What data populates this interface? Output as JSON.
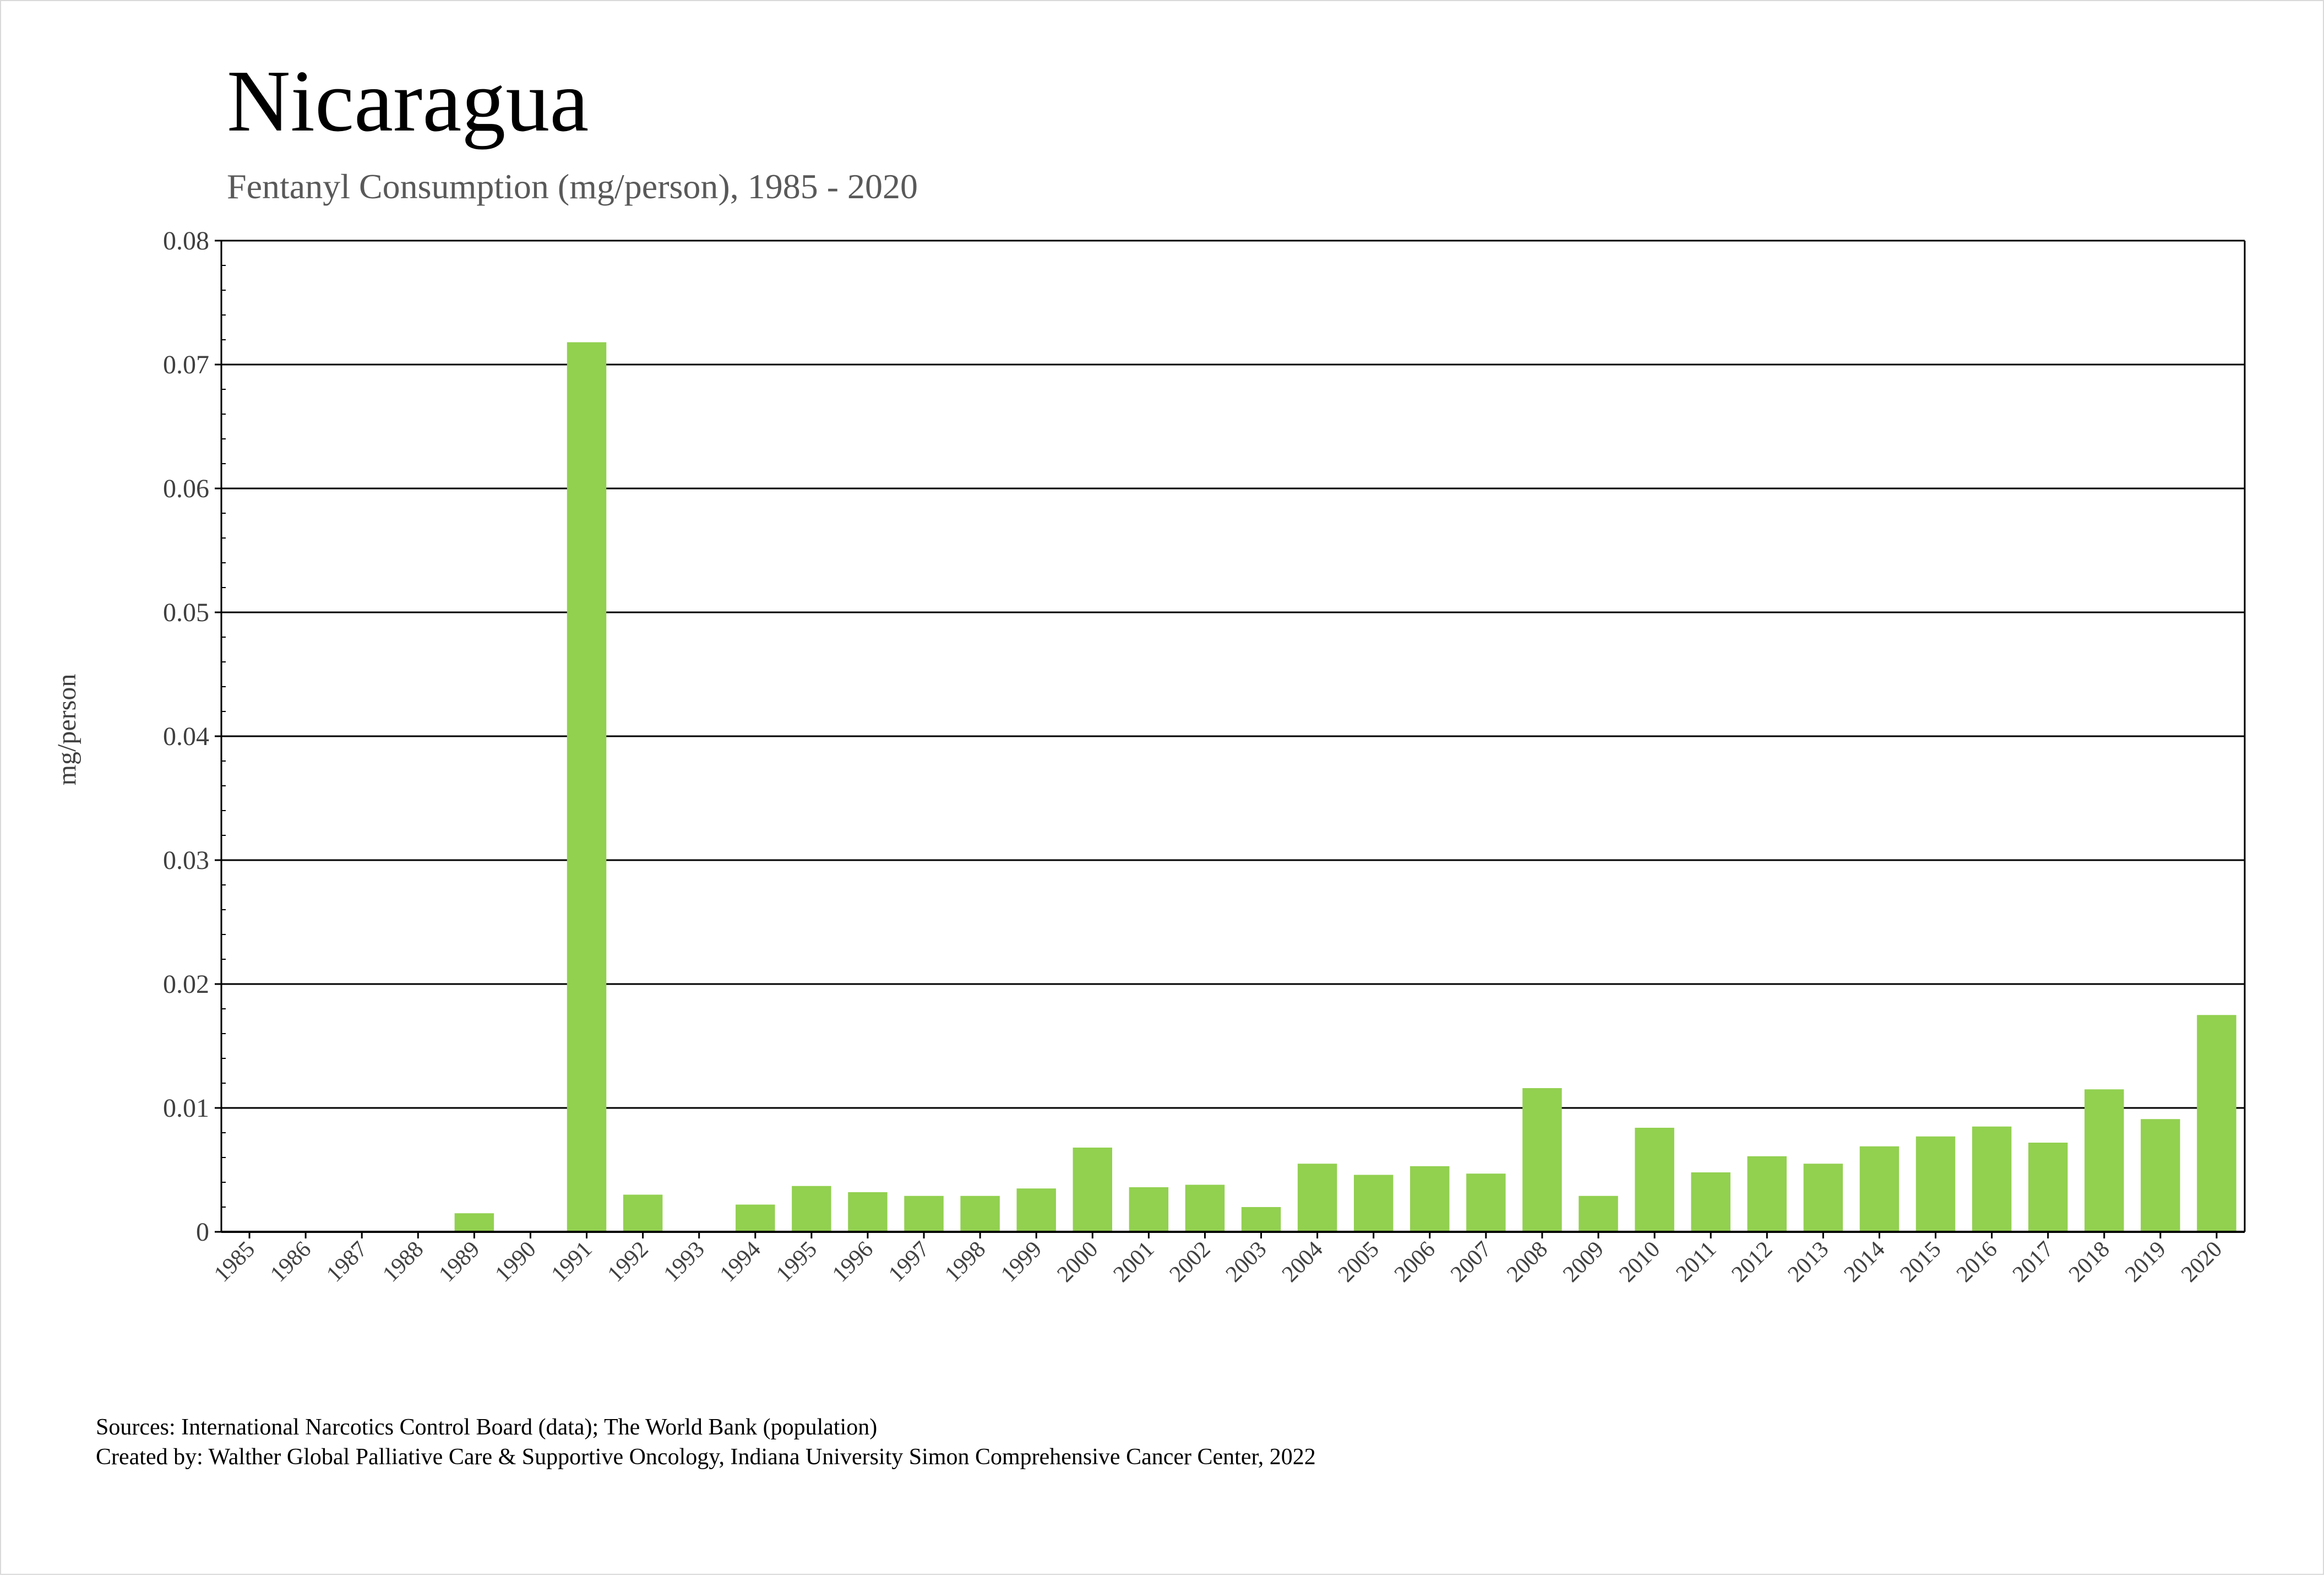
{
  "chart_data": {
    "type": "bar",
    "title": "Nicaragua",
    "subtitle": "Fentanyl Consumption (mg/person), 1985 - 2020",
    "ylabel": "mg/person",
    "xlabel": "",
    "ylim": [
      0,
      0.08
    ],
    "yticks": [
      "0",
      "0.01",
      "0.02",
      "0.03",
      "0.04",
      "0.05",
      "0.06",
      "0.07",
      "0.08"
    ],
    "grid": true,
    "bar_color": "#92d050",
    "categories": [
      "1985",
      "1986",
      "1987",
      "1988",
      "1989",
      "1990",
      "1991",
      "1992",
      "1993",
      "1994",
      "1995",
      "1996",
      "1997",
      "1998",
      "1999",
      "2000",
      "2001",
      "2002",
      "2003",
      "2004",
      "2005",
      "2006",
      "2007",
      "2008",
      "2009",
      "2010",
      "2011",
      "2012",
      "2013",
      "2014",
      "2015",
      "2016",
      "2017",
      "2018",
      "2019",
      "2020"
    ],
    "values": [
      0,
      0,
      0,
      0,
      0.0015,
      0,
      0.0718,
      0.003,
      0,
      0.0022,
      0.0037,
      0.0032,
      0.0029,
      0.0029,
      0.0035,
      0.0068,
      0.0036,
      0.0038,
      0.002,
      0.0055,
      0.0046,
      0.0053,
      0.0047,
      0.0116,
      0.0029,
      0.0084,
      0.0048,
      0.0061,
      0.0055,
      0.0069,
      0.0077,
      0.0085,
      0.0072,
      0.0115,
      0.0091,
      0.0175
    ]
  },
  "sources": {
    "line1": "Sources: International Narcotics Control Board (data); The World Bank (population)",
    "line2": "Created by: Walther Global Palliative Care & Supportive Oncology, Indiana University Simon Comprehensive Cancer Center, 2022"
  }
}
